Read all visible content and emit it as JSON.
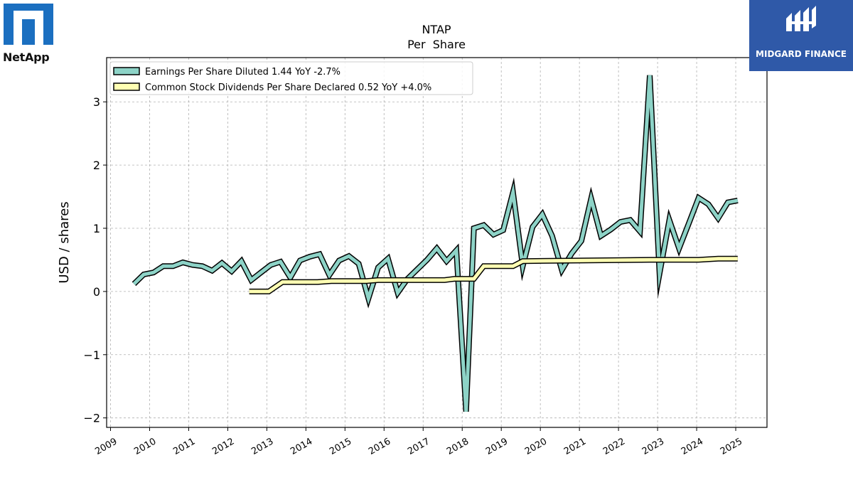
{
  "brand": {
    "left_logo_text": "NetApp",
    "right_logo_text": "MIDGARD FINANCE",
    "left_logo_color": "#1b6fc0",
    "right_logo_color": "#2f59a8"
  },
  "chart_data": {
    "type": "line",
    "title": "NTAP",
    "subtitle": "Per  Share",
    "xlabel": "",
    "ylabel": "USD / shares",
    "xlim": [
      2008.9,
      2025.8
    ],
    "ylim": [
      -2.15,
      3.7
    ],
    "x_ticks": [
      2009,
      2010,
      2011,
      2012,
      2013,
      2014,
      2015,
      2016,
      2017,
      2018,
      2019,
      2020,
      2021,
      2022,
      2023,
      2024,
      2025
    ],
    "y_ticks": [
      -2,
      -1,
      0,
      1,
      2,
      3
    ],
    "y_tick_labels": [
      "−2",
      "−1",
      "0",
      "1",
      "2",
      "3"
    ],
    "grid": true,
    "legend_position": "upper-left",
    "series": [
      {
        "name": "Earnings Per Share Diluted  1.44 YoY -2.7%",
        "color": "#8dd3c7",
        "points": [
          [
            2009.6,
            0.12
          ],
          [
            2009.85,
            0.27
          ],
          [
            2010.1,
            0.3
          ],
          [
            2010.35,
            0.4
          ],
          [
            2010.6,
            0.4
          ],
          [
            2010.85,
            0.46
          ],
          [
            2011.1,
            0.42
          ],
          [
            2011.35,
            0.4
          ],
          [
            2011.6,
            0.33
          ],
          [
            2011.85,
            0.45
          ],
          [
            2012.1,
            0.32
          ],
          [
            2012.35,
            0.48
          ],
          [
            2012.6,
            0.18
          ],
          [
            2012.85,
            0.3
          ],
          [
            2013.1,
            0.42
          ],
          [
            2013.35,
            0.47
          ],
          [
            2013.6,
            0.22
          ],
          [
            2013.85,
            0.49
          ],
          [
            2014.1,
            0.55
          ],
          [
            2014.35,
            0.59
          ],
          [
            2014.6,
            0.26
          ],
          [
            2014.85,
            0.49
          ],
          [
            2015.1,
            0.56
          ],
          [
            2015.35,
            0.44
          ],
          [
            2015.6,
            -0.11
          ],
          [
            2015.85,
            0.38
          ],
          [
            2016.1,
            0.52
          ],
          [
            2016.35,
            -0.02
          ],
          [
            2016.6,
            0.2
          ],
          [
            2016.85,
            0.35
          ],
          [
            2017.1,
            0.5
          ],
          [
            2017.35,
            0.68
          ],
          [
            2017.6,
            0.48
          ],
          [
            2017.85,
            0.65
          ],
          [
            2018.1,
            -1.9
          ],
          [
            2018.3,
            1.0
          ],
          [
            2018.55,
            1.05
          ],
          [
            2018.8,
            0.9
          ],
          [
            2019.05,
            0.97
          ],
          [
            2019.3,
            1.57
          ],
          [
            2019.55,
            0.4
          ],
          [
            2019.8,
            1.02
          ],
          [
            2020.05,
            1.22
          ],
          [
            2020.3,
            0.88
          ],
          [
            2020.55,
            0.34
          ],
          [
            2020.8,
            0.6
          ],
          [
            2021.05,
            0.8
          ],
          [
            2021.3,
            1.47
          ],
          [
            2021.55,
            0.88
          ],
          [
            2021.8,
            0.98
          ],
          [
            2022.05,
            1.1
          ],
          [
            2022.3,
            1.13
          ],
          [
            2022.55,
            0.95
          ],
          [
            2022.8,
            3.42
          ],
          [
            2023.05,
            0.28
          ],
          [
            2023.3,
            1.13
          ],
          [
            2023.55,
            0.68
          ],
          [
            2023.8,
            1.08
          ],
          [
            2024.05,
            1.48
          ],
          [
            2024.3,
            1.38
          ],
          [
            2024.55,
            1.16
          ],
          [
            2024.8,
            1.41
          ],
          [
            2025.05,
            1.44
          ]
        ]
      },
      {
        "name": "Common Stock Dividends Per Share Declared  0.52 YoY +4.0%",
        "color": "#ffffb3",
        "points": [
          [
            2012.55,
            0.0
          ],
          [
            2013.05,
            0.0
          ],
          [
            2013.4,
            0.15
          ],
          [
            2014.3,
            0.15
          ],
          [
            2014.65,
            0.165
          ],
          [
            2015.55,
            0.165
          ],
          [
            2015.85,
            0.18
          ],
          [
            2017.55,
            0.18
          ],
          [
            2017.8,
            0.2
          ],
          [
            2018.3,
            0.2
          ],
          [
            2018.55,
            0.4
          ],
          [
            2019.3,
            0.4
          ],
          [
            2019.55,
            0.48
          ],
          [
            2022.8,
            0.5
          ],
          [
            2024.05,
            0.5
          ],
          [
            2024.55,
            0.52
          ],
          [
            2025.05,
            0.52
          ]
        ]
      }
    ]
  }
}
